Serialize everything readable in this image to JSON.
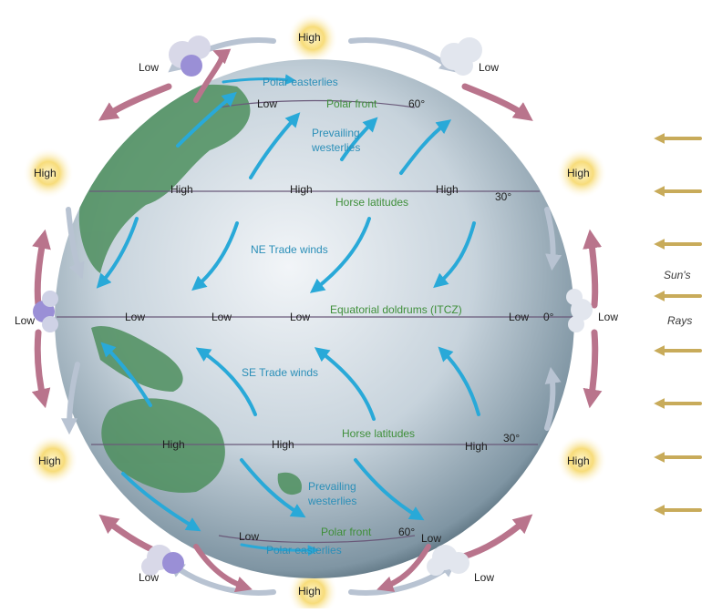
{
  "colors": {
    "globe": "#a9bcc8",
    "land": "#4e8f5e",
    "wind_arrow": "#29a9d8",
    "circulation_warm": "#b9748c",
    "circulation_cool": "#b8c3d2",
    "sun_ray": "#c8ab5a",
    "high_glow": "#f6d56a"
  },
  "pressure": {
    "high_top": "High",
    "high_bottom": "High",
    "high_nw": "High",
    "high_ne": "High",
    "high_sw": "High",
    "high_se": "High",
    "low_top_left": "Low",
    "low_top_right": "Low",
    "low_left": "Low",
    "low_right": "Low",
    "low_bottom_left": "Low",
    "low_bottom_right": "Low"
  },
  "latitude_markers": {
    "north_60": "60°",
    "north_30": "30°",
    "equator": "0°",
    "south_30": "30°",
    "south_60": "60°"
  },
  "line_labels": {
    "north_polar": "Low",
    "north_high_1": "High",
    "north_high_2": "High",
    "north_high_3": "High",
    "eq_low_1": "Low",
    "eq_low_2": "Low",
    "eq_low_3": "Low",
    "eq_low_4": "Low",
    "south_high_1": "High",
    "south_high_2": "High",
    "south_high_3": "High",
    "south_polar": "Low",
    "south_polar_right": "Low"
  },
  "zones": {
    "polar_easterlies_north": "Polar easterlies",
    "polar_front_north": "Polar front",
    "prevailing_westerlies_north_1": "Prevailing",
    "prevailing_westerlies_north_2": "westerlies",
    "horse_latitudes_north": "Horse latitudes",
    "ne_trade_winds": "NE Trade winds",
    "equatorial_doldrums": "Equatorial doldrums (ITCZ)",
    "se_trade_winds": "SE Trade winds",
    "horse_latitudes_south": "Horse latitudes",
    "prevailing_westerlies_south_1": "Prevailing",
    "prevailing_westerlies_south_2": "westerlies",
    "polar_front_south": "Polar front",
    "polar_easterlies_south": "Polar easterlies"
  },
  "sun": {
    "line1": "Sun's",
    "line2": "Rays",
    "arrow_count": 8
  }
}
